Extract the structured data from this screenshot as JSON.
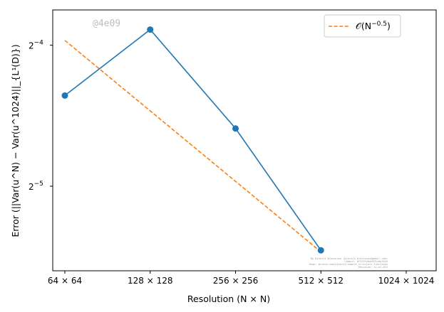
{
  "chart_data": {
    "type": "line",
    "title": "",
    "xlabel": "Resolution (N × N)",
    "ylabel": "Error (||Var(u^N) − Var(u^1024)||_{L¹(D)})",
    "x_scale": "log2",
    "y_scale": "log2",
    "x": [
      64,
      128,
      256,
      512
    ],
    "x_ticks": [
      64,
      128,
      256,
      512,
      1024
    ],
    "x_tick_labels": [
      "64 × 64",
      "128 × 128",
      "256 × 256",
      "512 × 512",
      "1024 × 1024"
    ],
    "y_ticks_exponent": [
      -5,
      -4
    ],
    "y_tick_labels": [
      "2",
      "2"
    ],
    "y_tick_label_exponents": [
      "−5",
      "−4"
    ],
    "ylim_log2": [
      -5.6,
      -3.75
    ],
    "series": [
      {
        "name": "",
        "style": "solid",
        "marker": "circle",
        "color": "#1f77b4",
        "values": [
          0.0488,
          0.0675,
          0.0415,
          0.0228
        ]
      },
      {
        "name": "O(N^−0.5)",
        "style": "dashed",
        "marker": "none",
        "color": "#ff7f0e",
        "values": [
          0.064,
          0.04525,
          0.032,
          0.02263
        ]
      }
    ],
    "legend": {
      "position": "top-right",
      "label_base": "𝒪(N",
      "label_exp": "−0.5",
      "label_end": ")"
    },
    "grid": false,
    "watermark": "@4e09",
    "credit_lines": [
      "By Bjornit Bjornsson (bjornit.bjornsson@gmail.com)",
      "Commit: 6f325fe84e9f1c0a7b2d",
      "Repo: github.com/bjornit/sample_structure_functions",
      "Revision: 1c.a1.013"
    ]
  }
}
